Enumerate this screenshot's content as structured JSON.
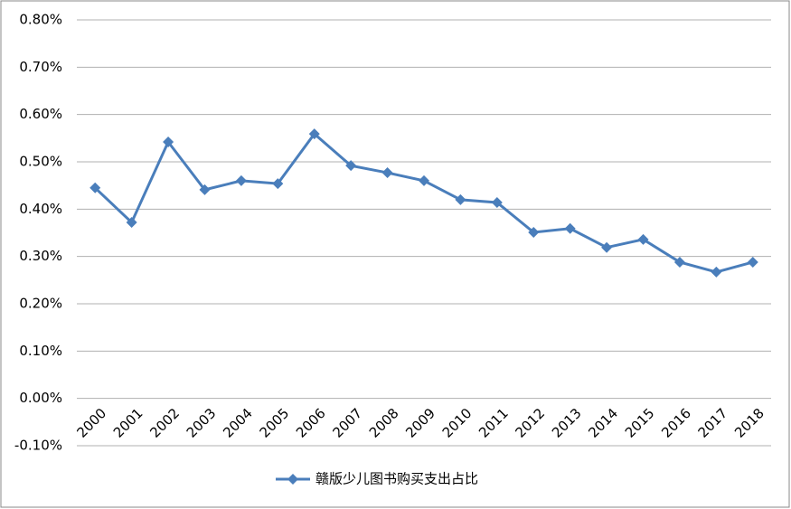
{
  "chart_data": {
    "type": "line",
    "categories": [
      "2000",
      "2001",
      "2002",
      "2003",
      "2004",
      "2005",
      "2006",
      "2007",
      "2008",
      "2009",
      "2010",
      "2011",
      "2012",
      "2013",
      "2014",
      "2015",
      "2016",
      "2017",
      "2018"
    ],
    "series": [
      {
        "name": "赣版少儿图书购买支出占比",
        "color": "#4a7ebb",
        "values": [
          0.445,
          0.372,
          0.542,
          0.441,
          0.46,
          0.454,
          0.559,
          0.492,
          0.477,
          0.46,
          0.42,
          0.414,
          0.351,
          0.359,
          0.319,
          0.336,
          0.288,
          0.267,
          0.288
        ]
      }
    ],
    "ylim": [
      -0.1,
      0.8
    ],
    "yticks": [
      {
        "value": -0.1,
        "label": "-0.10%"
      },
      {
        "value": 0,
        "label": "0.00%"
      },
      {
        "value": 0.1,
        "label": "0.10%"
      },
      {
        "value": 0.2,
        "label": "0.20%"
      },
      {
        "value": 0.3,
        "label": "0.30%"
      },
      {
        "value": 0.4,
        "label": "0.40%"
      },
      {
        "value": 0.5,
        "label": "0.50%"
      },
      {
        "value": 0.6,
        "label": "0.60%"
      },
      {
        "value": 0.7,
        "label": "0.70%"
      },
      {
        "value": 0.8,
        "label": "0.80%"
      }
    ],
    "grid": true,
    "legend": "bottom"
  }
}
